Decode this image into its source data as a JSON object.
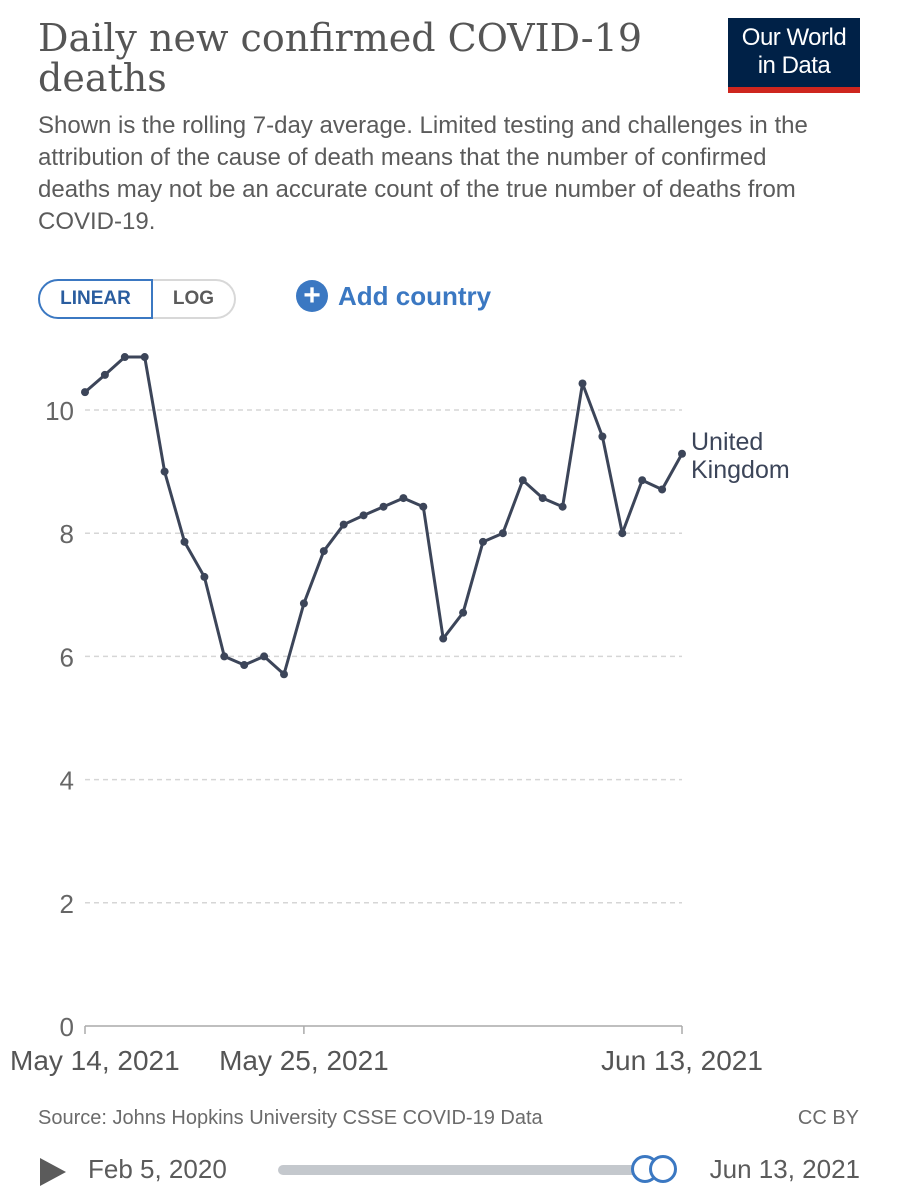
{
  "header": {
    "title": "Daily new confirmed COVID-19 deaths",
    "subtitle": "Shown is the rolling 7-day average. Limited testing and challenges in the attribution of the cause of death means that the number of confirmed deaths may not be an accurate count of the true number of deaths from COVID-19.",
    "logo_line1": "Our World",
    "logo_line2": "in Data"
  },
  "controls": {
    "scale_linear": "LINEAR",
    "scale_log": "LOG",
    "add_country_icon": "plus-circle-icon",
    "add_country": "Add country"
  },
  "chart_data": {
    "type": "line",
    "x_tick_labels": [
      "May 14, 2021",
      "May 25, 2021",
      "Jun 13, 2021"
    ],
    "x_tick_days": [
      0,
      11,
      30
    ],
    "y_ticks": [
      0,
      2,
      4,
      6,
      8,
      10
    ],
    "ylim": [
      0,
      11
    ],
    "grid": "horizontal-dashed",
    "series": [
      {
        "name": "United Kingdom",
        "color": "#3c4559",
        "x": [
          "2021-05-14",
          "2021-05-15",
          "2021-05-16",
          "2021-05-17",
          "2021-05-18",
          "2021-05-19",
          "2021-05-20",
          "2021-05-21",
          "2021-05-22",
          "2021-05-23",
          "2021-05-24",
          "2021-05-25",
          "2021-05-26",
          "2021-05-27",
          "2021-05-28",
          "2021-05-29",
          "2021-05-30",
          "2021-05-31",
          "2021-06-01",
          "2021-06-02",
          "2021-06-03",
          "2021-06-04",
          "2021-06-05",
          "2021-06-06",
          "2021-06-07",
          "2021-06-08",
          "2021-06-09",
          "2021-06-10",
          "2021-06-11",
          "2021-06-12",
          "2021-06-13"
        ],
        "values": [
          10.29,
          10.57,
          10.86,
          10.86,
          9.0,
          7.86,
          7.29,
          6.0,
          5.86,
          6.0,
          5.71,
          6.86,
          7.71,
          8.14,
          8.29,
          8.43,
          8.57,
          8.43,
          6.29,
          6.71,
          7.86,
          8.0,
          8.86,
          8.57,
          8.43,
          10.43,
          9.57,
          8.0,
          8.86,
          8.71,
          9.29
        ]
      }
    ]
  },
  "footer": {
    "source": "Source: Johns Hopkins University CSSE COVID-19 Data",
    "license": "CC BY"
  },
  "timeline": {
    "play_icon": "play-icon",
    "start_date": "Feb 5, 2020",
    "end_date": "Jun 13, 2021",
    "handle_position": 1.0
  }
}
